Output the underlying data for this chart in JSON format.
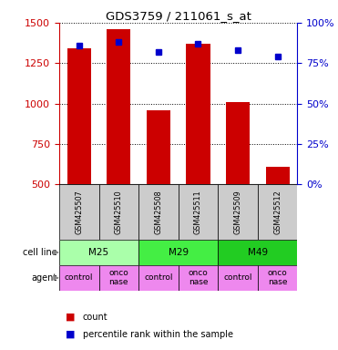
{
  "title": "GDS3759 / 211061_s_at",
  "samples": [
    "GSM425507",
    "GSM425510",
    "GSM425508",
    "GSM425511",
    "GSM425509",
    "GSM425512"
  ],
  "counts": [
    1340,
    1460,
    960,
    1370,
    1010,
    610
  ],
  "percentile_ranks": [
    86,
    88,
    82,
    87,
    83,
    79
  ],
  "ylim_left": [
    500,
    1500
  ],
  "ylim_right": [
    0,
    100
  ],
  "yticks_left": [
    500,
    750,
    1000,
    1250,
    1500
  ],
  "yticks_right": [
    0,
    25,
    50,
    75,
    100
  ],
  "bar_color": "#cc0000",
  "dot_color": "#0000cc",
  "cell_lines": [
    {
      "label": "M25",
      "span": [
        0,
        2
      ],
      "color": "#aaffaa"
    },
    {
      "label": "M29",
      "span": [
        2,
        4
      ],
      "color": "#44ee44"
    },
    {
      "label": "M49",
      "span": [
        4,
        6
      ],
      "color": "#22cc22"
    }
  ],
  "agents": [
    "control",
    "onconase",
    "control",
    "onconase",
    "control",
    "onconase"
  ],
  "agent_color": "#ee88ee",
  "sample_bg_color": "#cccccc",
  "left_axis_color": "#cc0000",
  "right_axis_color": "#0000cc",
  "legend_count_color": "#cc0000",
  "legend_pct_color": "#0000cc",
  "bar_width": 0.6
}
